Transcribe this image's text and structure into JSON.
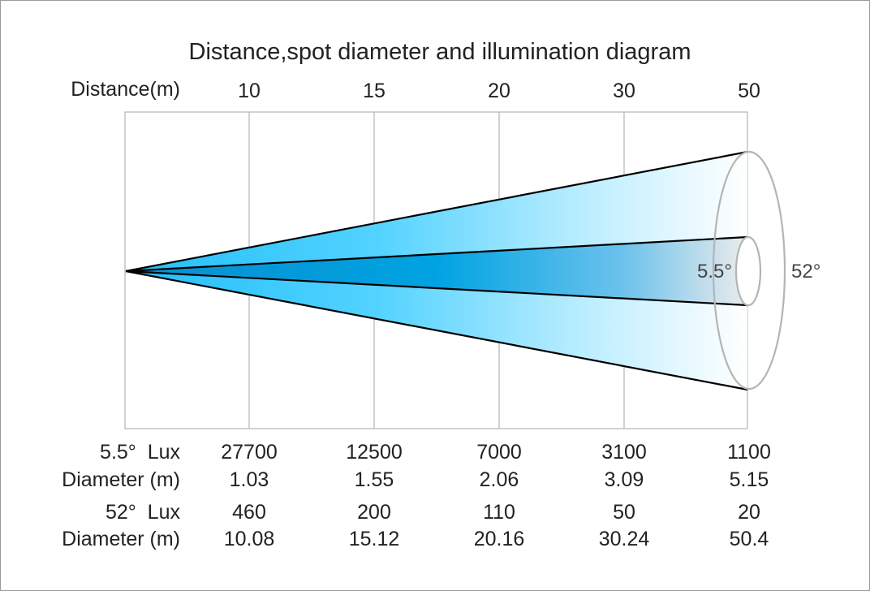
{
  "title": "Distance,spot diameter and illumination diagram",
  "distance_label": "Distance(m)",
  "distances": [
    "10",
    "15",
    "20",
    "30",
    "50"
  ],
  "beam_angles": {
    "narrow": "5.5°",
    "wide": "52°"
  },
  "rows": [
    {
      "label": "5.5°  Lux",
      "values": [
        "27700",
        "12500",
        "7000",
        "3100",
        "1100"
      ]
    },
    {
      "label": "Diameter (m)",
      "values": [
        "1.03",
        "1.55",
        "2.06",
        "3.09",
        "5.15"
      ]
    },
    {
      "label": "52°  Lux",
      "values": [
        "460",
        "200",
        "110",
        "50",
        "20"
      ]
    },
    {
      "label": "Diameter (m)",
      "values": [
        "10.08",
        "15.12",
        "20.16",
        "30.24",
        "50.4"
      ]
    }
  ],
  "colors": {
    "beam_wide_start": "#29c4ff",
    "beam_narrow_start": "#0096d6",
    "beam_end": "#ffffff",
    "grid": "#b4b4b4",
    "outline": "#000000"
  }
}
